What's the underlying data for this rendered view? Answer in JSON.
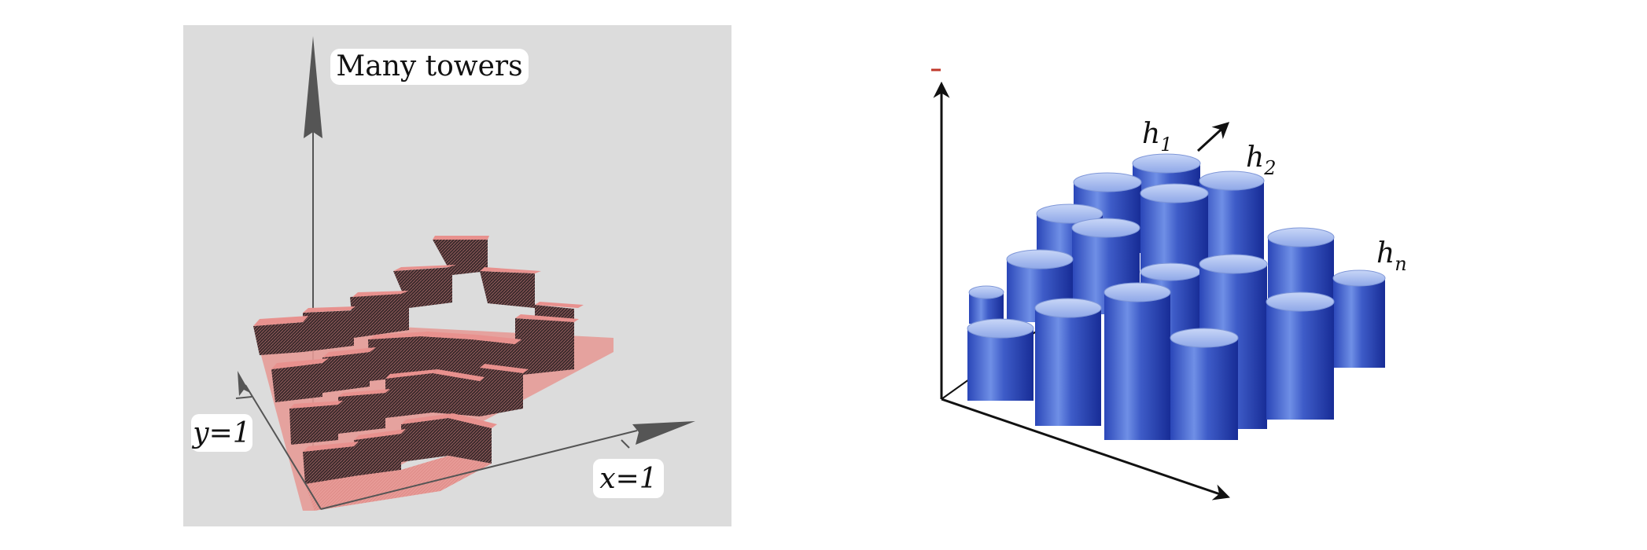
{
  "left_panel": {
    "title": "Many towers",
    "x_label": "x=1",
    "y_label": "y=1",
    "colors": {
      "background": "#dcdcdc",
      "surface": "#e8918e",
      "wall": "#3a2a2c",
      "axis": "#555555"
    }
  },
  "right_panel": {
    "labels": [
      {
        "base": "h",
        "sub": "1"
      },
      {
        "base": "h",
        "sub": "2"
      },
      {
        "base": "h",
        "sub": "n"
      }
    ],
    "colors": {
      "cylinder_dark": "#1a33a8",
      "cylinder_light": "#9fb8ef",
      "axis": "#111111",
      "tick": "#c0392b"
    }
  }
}
